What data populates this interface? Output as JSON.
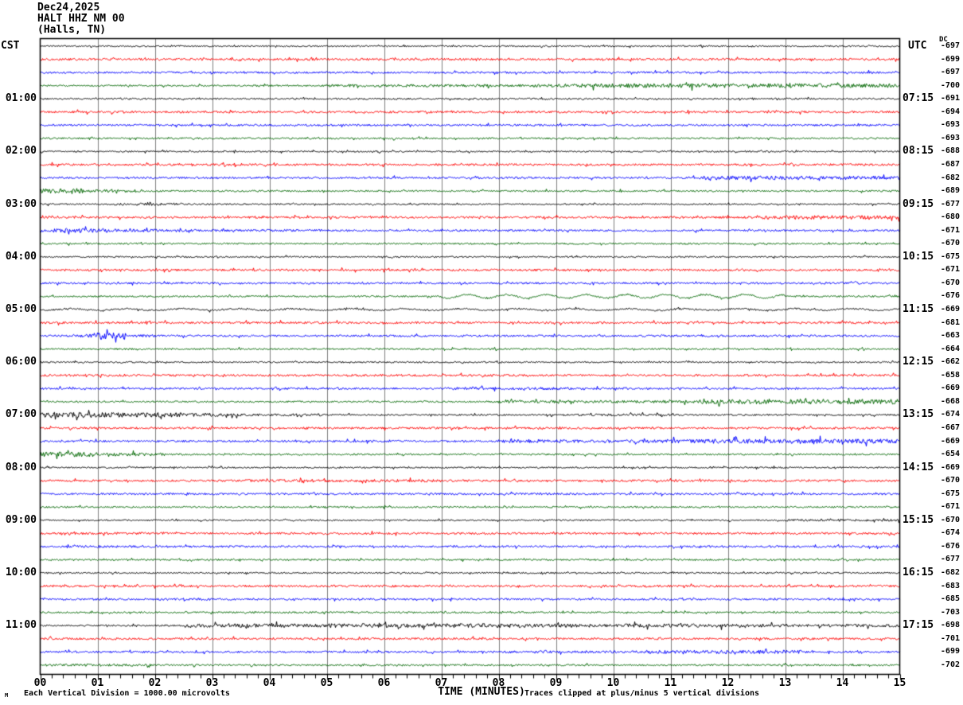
{
  "header": {
    "date": "Dec24,2025",
    "station": "HALT HHZ NM 00",
    "location": "(Halls, TN)"
  },
  "footer": {
    "left_note": "Each Vertical Division = 1000.00 microvolts",
    "right_note": "Traces clipped at plus/minus 5 vertical divisions",
    "corner_mark": "M"
  },
  "chart_data": {
    "type": "line",
    "subtype": "helicorder-seismogram",
    "title": "HALT HHZ NM 00 (Halls, TN) Dec24,2025",
    "x_axis": {
      "title": "TIME (MINUTES)",
      "tick_labels": [
        "00",
        "01",
        "02",
        "03",
        "04",
        "05",
        "06",
        "07",
        "08",
        "09",
        "10",
        "11",
        "12",
        "13",
        "14",
        "15"
      ],
      "minutes_per_line": 15,
      "minor_ticks_per_division": 5,
      "grid": "vertical-only"
    },
    "left_axis": {
      "header": "CST"
    },
    "right_axis": {
      "header": "UTC",
      "dc_header": "DC"
    },
    "colors": {
      "black": "#000000",
      "red": "#ff0000",
      "blue": "#0000ff",
      "green": "#006600",
      "grid": "#808080",
      "border": "#000000",
      "background": "#ffffff"
    },
    "clip_divisions": 5,
    "traces": [
      {
        "i": 0,
        "color": "black",
        "dc": -697,
        "base": 0.9,
        "segs": [],
        "wave": []
      },
      {
        "i": 1,
        "color": "red",
        "dc": -699,
        "base": 1.3,
        "segs": [],
        "wave": []
      },
      {
        "i": 2,
        "color": "blue",
        "dc": -697,
        "base": 1.2,
        "segs": [],
        "wave": []
      },
      {
        "i": 3,
        "color": "green",
        "dc": -700,
        "base": 1.0,
        "segs": [
          [
            5,
            9,
            1.8
          ],
          [
            9,
            15,
            2.6
          ]
        ],
        "wave": []
      },
      {
        "i": 4,
        "color": "black",
        "dc": -691,
        "cst": "01:00",
        "utc": "07:15",
        "base": 1.0,
        "segs": [],
        "wave": []
      },
      {
        "i": 5,
        "color": "red",
        "dc": -694,
        "base": 1.3,
        "segs": [],
        "wave": []
      },
      {
        "i": 6,
        "color": "blue",
        "dc": -693,
        "base": 1.2,
        "segs": [],
        "wave": []
      },
      {
        "i": 7,
        "color": "green",
        "dc": -693,
        "base": 1.0,
        "segs": [],
        "wave": []
      },
      {
        "i": 8,
        "color": "black",
        "dc": -688,
        "cst": "02:00",
        "utc": "08:15",
        "base": 0.9,
        "segs": [],
        "wave": []
      },
      {
        "i": 9,
        "color": "red",
        "dc": -687,
        "base": 1.3,
        "segs": [],
        "wave": []
      },
      {
        "i": 10,
        "color": "blue",
        "dc": -682,
        "base": 1.2,
        "segs": [
          [
            11.5,
            15,
            2.4
          ]
        ],
        "wave": []
      },
      {
        "i": 11,
        "color": "green",
        "dc": -689,
        "base": 1.0,
        "segs": [
          [
            0,
            0.8,
            2.8
          ],
          [
            0.8,
            1.8,
            1.8
          ]
        ],
        "wave": []
      },
      {
        "i": 12,
        "color": "black",
        "dc": -677,
        "cst": "03:00",
        "utc": "09:15",
        "base": 0.9,
        "segs": [
          [
            1.3,
            2.5,
            1.6
          ]
        ],
        "wave": []
      },
      {
        "i": 13,
        "color": "red",
        "dc": -680,
        "base": 1.3,
        "segs": [
          [
            12.5,
            15,
            2.4
          ]
        ],
        "wave": []
      },
      {
        "i": 14,
        "color": "blue",
        "dc": -671,
        "base": 1.2,
        "segs": [
          [
            0,
            1.2,
            2.6
          ],
          [
            1.2,
            2.6,
            1.8
          ],
          [
            2.6,
            5,
            1.4
          ]
        ],
        "wave": []
      },
      {
        "i": 15,
        "color": "green",
        "dc": -670,
        "base": 1.0,
        "segs": [],
        "wave": []
      },
      {
        "i": 16,
        "color": "black",
        "dc": -675,
        "cst": "04:00",
        "utc": "10:15",
        "base": 0.9,
        "segs": [],
        "wave": []
      },
      {
        "i": 17,
        "color": "red",
        "dc": -671,
        "base": 1.3,
        "segs": [],
        "wave": []
      },
      {
        "i": 18,
        "color": "blue",
        "dc": -670,
        "base": 1.2,
        "segs": [],
        "wave": []
      },
      {
        "i": 19,
        "color": "green",
        "dc": -676,
        "base": 1.0,
        "segs": [],
        "wave": [
          [
            7,
            13,
            2.2,
            50
          ]
        ]
      },
      {
        "i": 20,
        "color": "black",
        "dc": -669,
        "cst": "05:00",
        "utc": "11:15",
        "base": 1.0,
        "segs": [],
        "wave": [
          [
            0,
            15,
            1.0,
            70
          ]
        ]
      },
      {
        "i": 21,
        "color": "red",
        "dc": -681,
        "base": 1.3,
        "segs": [],
        "wave": []
      },
      {
        "i": 22,
        "color": "blue",
        "dc": -663,
        "base": 1.2,
        "segs": [
          [
            0.5,
            1.0,
            2.0
          ],
          [
            1.0,
            1.5,
            4.5
          ],
          [
            1.5,
            2.0,
            1.6
          ]
        ],
        "wave": []
      },
      {
        "i": 23,
        "color": "green",
        "dc": -664,
        "base": 1.0,
        "segs": [],
        "wave": []
      },
      {
        "i": 24,
        "color": "black",
        "dc": -662,
        "cst": "06:00",
        "utc": "12:15",
        "base": 0.9,
        "segs": [],
        "wave": []
      },
      {
        "i": 25,
        "color": "red",
        "dc": -658,
        "base": 1.3,
        "segs": [],
        "wave": []
      },
      {
        "i": 26,
        "color": "blue",
        "dc": -669,
        "base": 1.2,
        "segs": [
          [
            7,
            9.5,
            1.7
          ]
        ],
        "wave": []
      },
      {
        "i": 27,
        "color": "green",
        "dc": -668,
        "base": 1.0,
        "segs": [
          [
            8,
            11.5,
            1.7
          ],
          [
            11.5,
            13,
            2.8
          ],
          [
            13,
            15,
            3.2
          ]
        ],
        "wave": []
      },
      {
        "i": 28,
        "color": "black",
        "dc": -674,
        "cst": "07:00",
        "utc": "13:15",
        "base": 1.0,
        "segs": [
          [
            0,
            1,
            3.5
          ],
          [
            1,
            2.5,
            3.0
          ],
          [
            2.5,
            3.5,
            2.2
          ],
          [
            3.5,
            5,
            1.5
          ],
          [
            9,
            11,
            1.3
          ]
        ],
        "wave": []
      },
      {
        "i": 29,
        "color": "red",
        "dc": -667,
        "base": 1.3,
        "segs": [],
        "wave": []
      },
      {
        "i": 30,
        "color": "blue",
        "dc": -669,
        "base": 1.2,
        "segs": [
          [
            8,
            11,
            2.0
          ],
          [
            11,
            15,
            2.8
          ]
        ],
        "wave": []
      },
      {
        "i": 31,
        "color": "green",
        "dc": -654,
        "base": 1.0,
        "segs": [
          [
            0,
            1,
            3.0
          ],
          [
            1,
            2.2,
            2.0
          ]
        ],
        "wave": []
      },
      {
        "i": 32,
        "color": "black",
        "dc": -669,
        "cst": "08:00",
        "utc": "14:15",
        "base": 0.9,
        "segs": [],
        "wave": []
      },
      {
        "i": 33,
        "color": "red",
        "dc": -670,
        "base": 1.3,
        "segs": [
          [
            3.5,
            7,
            1.7
          ]
        ],
        "wave": []
      },
      {
        "i": 34,
        "color": "blue",
        "dc": -675,
        "base": 1.2,
        "segs": [],
        "wave": []
      },
      {
        "i": 35,
        "color": "green",
        "dc": -671,
        "base": 1.0,
        "segs": [],
        "wave": []
      },
      {
        "i": 36,
        "color": "black",
        "dc": -670,
        "cst": "09:00",
        "utc": "15:15",
        "base": 0.9,
        "segs": [
          [
            13,
            15,
            1.4
          ]
        ],
        "wave": []
      },
      {
        "i": 37,
        "color": "red",
        "dc": -674,
        "base": 1.3,
        "segs": [
          [
            0.5,
            2,
            1.6
          ]
        ],
        "wave": []
      },
      {
        "i": 38,
        "color": "blue",
        "dc": -676,
        "base": 1.2,
        "segs": [
          [
            0.5,
            2,
            1.5
          ]
        ],
        "wave": []
      },
      {
        "i": 39,
        "color": "green",
        "dc": -677,
        "base": 1.0,
        "segs": [],
        "wave": []
      },
      {
        "i": 40,
        "color": "black",
        "dc": -682,
        "cst": "10:00",
        "utc": "16:15",
        "base": 0.9,
        "segs": [
          [
            8,
            9,
            1.3
          ]
        ],
        "wave": []
      },
      {
        "i": 41,
        "color": "red",
        "dc": -683,
        "base": 1.3,
        "segs": [],
        "wave": []
      },
      {
        "i": 42,
        "color": "blue",
        "dc": -685,
        "base": 1.2,
        "segs": [
          [
            2,
            3,
            1.5
          ]
        ],
        "wave": []
      },
      {
        "i": 43,
        "color": "green",
        "dc": -703,
        "base": 1.0,
        "segs": [],
        "wave": []
      },
      {
        "i": 44,
        "color": "black",
        "dc": -698,
        "cst": "11:00",
        "utc": "17:15",
        "base": 1.0,
        "segs": [
          [
            2.5,
            5,
            2.2
          ],
          [
            5,
            8.5,
            2.6
          ],
          [
            8.5,
            12,
            2.2
          ],
          [
            12,
            15,
            1.8
          ]
        ],
        "wave": []
      },
      {
        "i": 45,
        "color": "red",
        "dc": -701,
        "base": 1.3,
        "segs": [],
        "wave": []
      },
      {
        "i": 46,
        "color": "blue",
        "dc": -699,
        "base": 1.2,
        "segs": [
          [
            8,
            10.5,
            1.6
          ],
          [
            10.5,
            13.5,
            2.2
          ]
        ],
        "wave": []
      },
      {
        "i": 47,
        "color": "green",
        "dc": -702,
        "base": 1.0,
        "segs": [
          [
            0,
            2,
            1.5
          ]
        ],
        "wave": []
      }
    ]
  }
}
